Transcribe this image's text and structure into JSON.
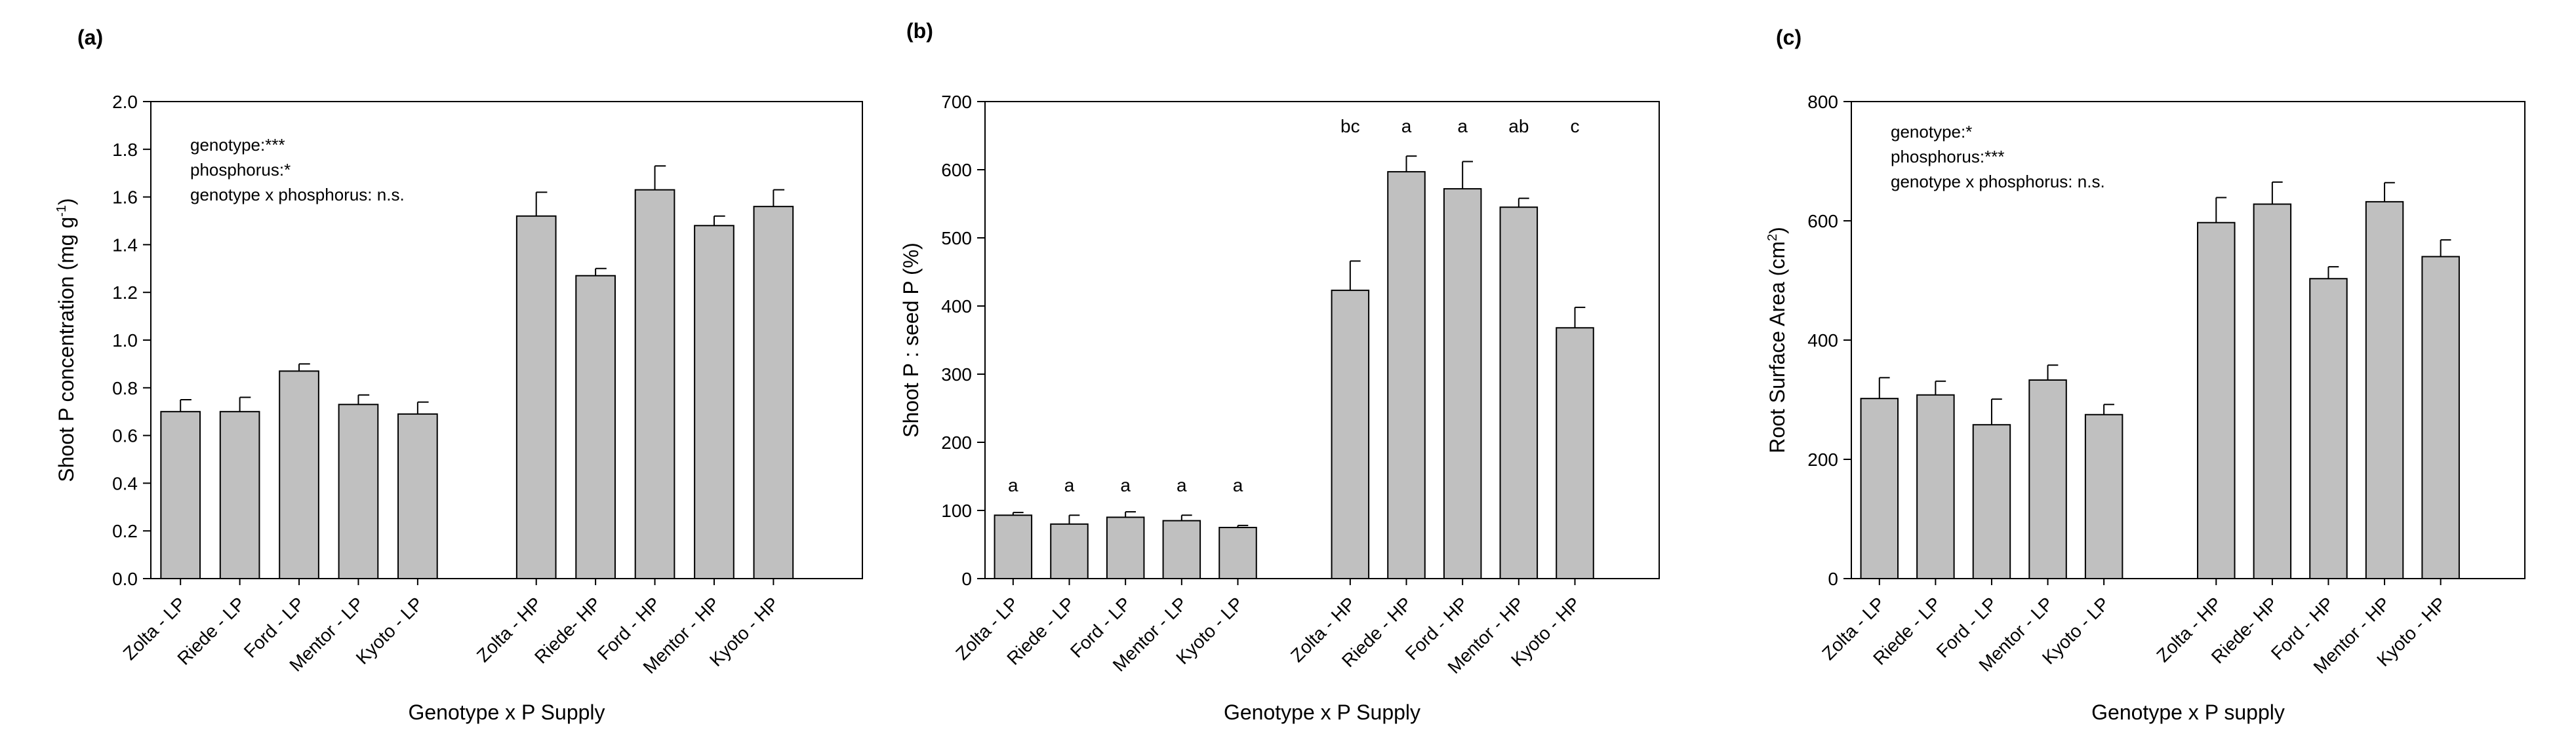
{
  "chart_data": [
    {
      "type": "bar",
      "panel_label": "(a)",
      "ylabel": "Shoot P concentration (mg g",
      "ylabel_sup": "-1",
      "ylabel_suffix": ")",
      "xlabel": "Genotype x P Supply",
      "ylim": [
        0,
        2.0
      ],
      "yticks": [
        "0.0",
        "0.2",
        "0.4",
        "0.6",
        "0.8",
        "1.0",
        "1.2",
        "1.4",
        "1.6",
        "1.8",
        "2.0"
      ],
      "ytick_values": [
        0,
        0.2,
        0.4,
        0.6,
        0.8,
        1.0,
        1.2,
        1.4,
        1.6,
        1.8,
        2.0
      ],
      "groups": [
        {
          "categories": [
            "Zolta - LP",
            "Riede - LP",
            "Ford - LP",
            "Mentor - LP",
            "Kyoto - LP"
          ],
          "values": [
            0.7,
            0.7,
            0.87,
            0.73,
            0.69
          ],
          "errors": [
            0.05,
            0.06,
            0.03,
            0.04,
            0.05
          ]
        },
        {
          "categories": [
            "Zolta - HP",
            "Riede- HP",
            "Ford - HP",
            "Mentor - HP",
            "Kyoto - HP"
          ],
          "values": [
            1.52,
            1.27,
            1.63,
            1.48,
            1.56
          ],
          "errors": [
            0.1,
            0.03,
            0.1,
            0.04,
            0.07
          ]
        }
      ],
      "annotations": [
        "genotype:***",
        "phosphorus:*",
        "genotype x phosphorus: n.s."
      ],
      "bar_color": "#c0c0c0",
      "grid": false
    },
    {
      "type": "bar",
      "panel_label": "(b)",
      "ylabel": "Shoot P : seed P (%)",
      "ylabel_sup": "",
      "ylabel_suffix": "",
      "xlabel": "Genotype x P Supply",
      "ylim": [
        0,
        700
      ],
      "yticks": [
        "0",
        "100",
        "200",
        "300",
        "400",
        "500",
        "600",
        "700"
      ],
      "ytick_values": [
        0,
        100,
        200,
        300,
        400,
        500,
        600,
        700
      ],
      "groups": [
        {
          "categories": [
            "Zolta - LP",
            "Riede - LP",
            "Ford - LP",
            "Mentor - LP",
            "Kyoto - LP"
          ],
          "values": [
            93,
            80,
            90,
            85,
            75
          ],
          "errors": [
            4,
            13,
            8,
            8,
            3
          ],
          "letters": [
            "a",
            "a",
            "a",
            "a",
            "a"
          ]
        },
        {
          "categories": [
            "Zolta - HP",
            "Riede - HP",
            "Ford - HP",
            "Mentor - HP",
            "Kyoto - HP"
          ],
          "values": [
            423,
            597,
            572,
            545,
            368
          ],
          "errors": [
            43,
            23,
            40,
            13,
            30
          ],
          "letters": [
            "bc",
            "a",
            "a",
            "ab",
            "c"
          ]
        }
      ],
      "annotations": [],
      "bar_color": "#c0c0c0",
      "grid": false
    },
    {
      "type": "bar",
      "panel_label": "(c)",
      "ylabel": "Root Surface Area (cm",
      "ylabel_sup": "2",
      "ylabel_suffix": ")",
      "xlabel": "Genotype x P supply",
      "ylim": [
        0,
        800
      ],
      "yticks": [
        "0",
        "200",
        "400",
        "600",
        "800"
      ],
      "ytick_values": [
        0,
        200,
        400,
        600,
        800
      ],
      "groups": [
        {
          "categories": [
            "Zolta - LP",
            "Riede - LP",
            "Ford - LP",
            "Mentor - LP",
            "Kyoto - LP"
          ],
          "values": [
            302,
            308,
            258,
            333,
            275
          ],
          "errors": [
            35,
            23,
            43,
            25,
            17
          ]
        },
        {
          "categories": [
            "Zolta - HP",
            "Riede- HP",
            "Ford - HP",
            "Mentor - HP",
            "Kyoto - HP"
          ],
          "values": [
            597,
            628,
            503,
            632,
            540
          ],
          "errors": [
            42,
            37,
            20,
            32,
            28
          ]
        }
      ],
      "annotations": [
        "genotype:*",
        "phosphorus:***",
        "genotype x phosphorus: n.s."
      ],
      "bar_color": "#c0c0c0",
      "grid": false
    }
  ]
}
